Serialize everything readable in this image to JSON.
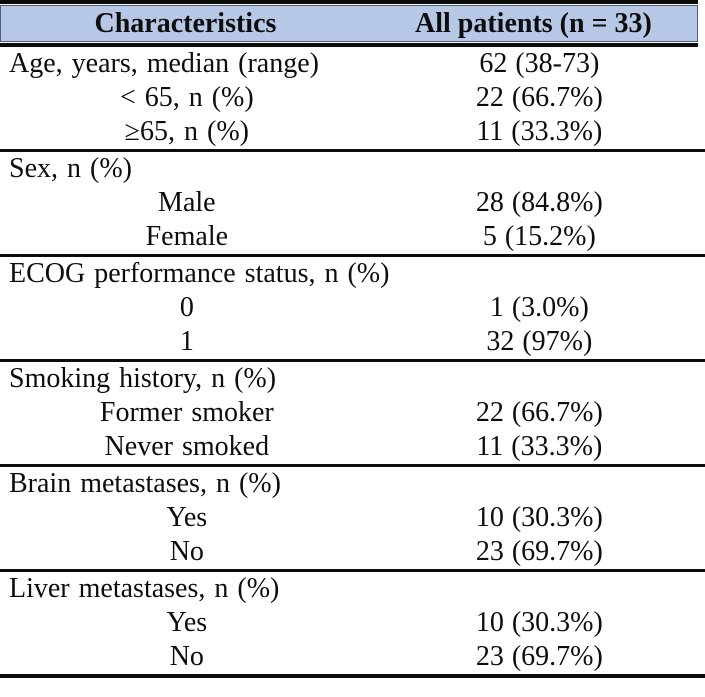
{
  "table": {
    "header": {
      "characteristics": "Characteristics",
      "all_patients": "All patients (n = 33)"
    },
    "sections": [
      {
        "rows": [
          {
            "label": "Age, years, median (range)",
            "indent": false,
            "value": "62 (38-73)"
          },
          {
            "label": "< 65, n (%)",
            "indent": true,
            "value": "22 (66.7%)"
          },
          {
            "label": "≥65, n (%)",
            "indent": true,
            "value": "11 (33.3%)"
          }
        ]
      },
      {
        "rows": [
          {
            "label": "Sex, n (%)",
            "indent": false,
            "value": ""
          },
          {
            "label": "Male",
            "indent": true,
            "value": "28 (84.8%)"
          },
          {
            "label": "Female",
            "indent": true,
            "value": "5 (15.2%)"
          }
        ]
      },
      {
        "rows": [
          {
            "label": "ECOG performance status, n (%)",
            "indent": false,
            "value": ""
          },
          {
            "label": "0",
            "indent": true,
            "value": "1 (3.0%)"
          },
          {
            "label": "1",
            "indent": true,
            "value": "32 (97%)"
          }
        ]
      },
      {
        "rows": [
          {
            "label": "Smoking history, n (%)",
            "indent": false,
            "value": ""
          },
          {
            "label": "Former smoker",
            "indent": true,
            "value": "22 (66.7%)"
          },
          {
            "label": "Never smoked",
            "indent": true,
            "value": "11 (33.3%)"
          }
        ]
      },
      {
        "rows": [
          {
            "label": "Brain metastases, n (%)",
            "indent": false,
            "value": ""
          },
          {
            "label": "Yes",
            "indent": true,
            "value": "10 (30.3%)"
          },
          {
            "label": "No",
            "indent": true,
            "value": "23 (69.7%)"
          }
        ]
      },
      {
        "rows": [
          {
            "label": "Liver metastases, n (%)",
            "indent": false,
            "value": ""
          },
          {
            "label": "Yes",
            "indent": true,
            "value": "10 (30.3%)"
          },
          {
            "label": "No",
            "indent": true,
            "value": "23 (69.7%)"
          }
        ]
      }
    ],
    "colors": {
      "header_bg": "#b6c8e6",
      "header_outline": "#4e5e7c",
      "border": "#0c0c0c",
      "text": "#0d0d0d"
    }
  }
}
